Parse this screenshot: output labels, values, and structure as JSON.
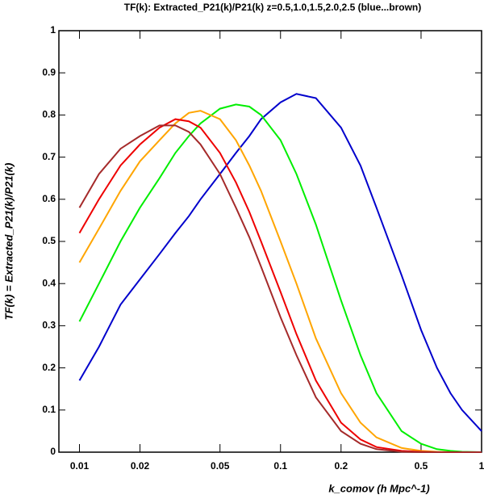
{
  "chart_data": {
    "type": "line",
    "title": "TF(k): Extracted_P21(k)/P21(k) z=0.5,1.0,1.5,2.0,2.5 (blue...brown)",
    "xlabel": "k_comov  (h Mpc^-1)",
    "ylabel": "TF(k) = Extracted_P21(k)/P21(k)",
    "xscale": "log",
    "x": [
      0.01,
      0.0125,
      0.016,
      0.02,
      0.025,
      0.03,
      0.035,
      0.04,
      0.05,
      0.06,
      0.07,
      0.08,
      0.1,
      0.12,
      0.15,
      0.2,
      0.25,
      0.3,
      0.4,
      0.5,
      0.6,
      0.7,
      0.8,
      1
    ],
    "series": [
      {
        "color": "#0000cc",
        "values": [
          0.17,
          0.25,
          0.35,
          0.41,
          0.47,
          0.52,
          0.56,
          0.6,
          0.66,
          0.71,
          0.75,
          0.79,
          0.83,
          0.85,
          0.84,
          0.77,
          0.68,
          0.58,
          0.42,
          0.29,
          0.2,
          0.14,
          0.1,
          0.05
        ]
      },
      {
        "color": "#00ee00",
        "values": [
          0.31,
          0.4,
          0.5,
          0.58,
          0.65,
          0.71,
          0.75,
          0.78,
          0.815,
          0.825,
          0.82,
          0.8,
          0.74,
          0.66,
          0.54,
          0.36,
          0.23,
          0.14,
          0.05,
          0.02,
          0.007,
          0.003,
          0.001,
          0
        ]
      },
      {
        "color": "#ffa500",
        "values": [
          0.45,
          0.53,
          0.62,
          0.69,
          0.74,
          0.78,
          0.805,
          0.81,
          0.79,
          0.74,
          0.68,
          0.62,
          0.5,
          0.4,
          0.27,
          0.14,
          0.07,
          0.035,
          0.01,
          0.003,
          0.001,
          0,
          0,
          0
        ]
      },
      {
        "color": "#ee0000",
        "values": [
          0.52,
          0.6,
          0.68,
          0.73,
          0.77,
          0.79,
          0.785,
          0.77,
          0.71,
          0.64,
          0.57,
          0.5,
          0.38,
          0.28,
          0.17,
          0.07,
          0.03,
          0.012,
          0.003,
          0.001,
          0,
          0,
          0,
          0
        ]
      },
      {
        "color": "#a52a2a",
        "values": [
          0.58,
          0.66,
          0.72,
          0.75,
          0.775,
          0.775,
          0.76,
          0.73,
          0.66,
          0.58,
          0.51,
          0.44,
          0.32,
          0.23,
          0.13,
          0.05,
          0.02,
          0.007,
          0.001,
          0,
          0,
          0,
          0,
          0
        ]
      }
    ],
    "xlim": [
      0.0079,
      1
    ],
    "ylim": [
      0,
      1
    ],
    "xticks": [
      0.01,
      0.02,
      0.05,
      0.1,
      0.2,
      0.5,
      1
    ],
    "yticks": [
      0,
      0.1,
      0.2,
      0.3,
      0.4,
      0.5,
      0.6,
      0.7,
      0.8,
      0.9,
      1
    ]
  }
}
